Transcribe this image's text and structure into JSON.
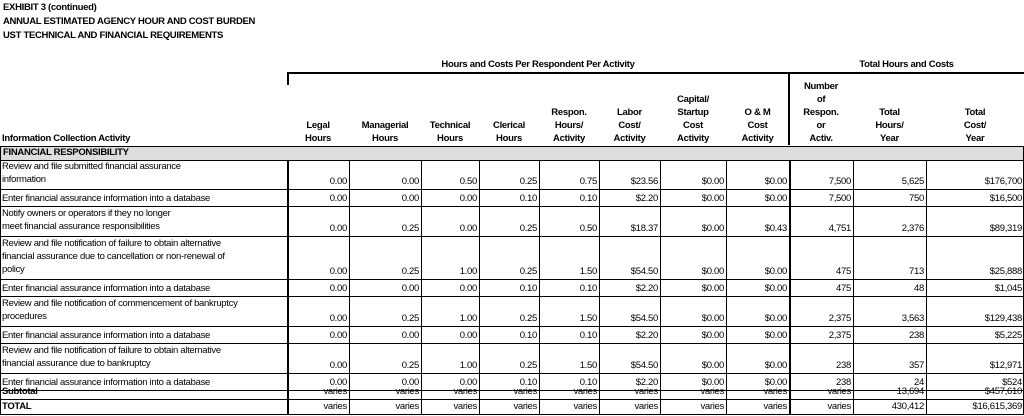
{
  "header": {
    "exhibit": "EXHIBIT 3 (continued)",
    "title1": "ANNUAL ESTIMATED AGENCY HOUR AND COST BURDEN",
    "title2": "UST TECHNICAL AND FINANCIAL REQUIREMENTS"
  },
  "groups": [
    "Hours and Costs Per Respondent Per Activity",
    "Total Hours and Costs"
  ],
  "columns": [
    [
      "Information Collection Activity"
    ],
    [
      "Legal",
      "Hours"
    ],
    [
      "Managerial",
      "Hours"
    ],
    [
      "Technical",
      "Hours"
    ],
    [
      "Clerical",
      "Hours"
    ],
    [
      "Respon.",
      "Hours/",
      "Activity"
    ],
    [
      "Labor",
      "Cost/",
      "Activity"
    ],
    [
      "Capital/",
      "Startup",
      "Cost",
      "Activity"
    ],
    [
      "O & M",
      "Cost",
      "Activity"
    ],
    [
      "Number",
      "of",
      "Respon.",
      "or",
      "Activ."
    ],
    [
      "Total",
      "Hours/",
      "Year"
    ],
    [
      "Total",
      "Cost/",
      "Year"
    ]
  ],
  "section": "FINANCIAL RESPONSIBILITY",
  "rows": [
    {
      "activity": [
        "Review and file submitted financial assurance",
        "information"
      ],
      "values": [
        "0.00",
        "0.00",
        "0.50",
        "0.25",
        "0.75",
        "$23.56",
        "$0.00",
        "$0.00",
        "7,500",
        "5,625",
        "$176,700"
      ]
    },
    {
      "activity": [
        "Enter financial assurance information into a database"
      ],
      "values": [
        "0.00",
        "0.00",
        "0.00",
        "0.10",
        "0.10",
        "$2.20",
        "$0.00",
        "$0.00",
        "7,500",
        "750",
        "$16,500"
      ]
    },
    {
      "activity": [
        "Notify owners or operators if they no longer",
        "meet financial assurance responsibilities"
      ],
      "values": [
        "0.00",
        "0.25",
        "0.00",
        "0.25",
        "0.50",
        "$18.37",
        "$0.00",
        "$0.43",
        "4,751",
        "2,376",
        "$89,319"
      ]
    },
    {
      "activity": [
        "Review and file notification of failure to obtain alternative",
        "financial assurance due to cancellation or non-renewal of",
        "policy"
      ],
      "values": [
        "0.00",
        "0.25",
        "1.00",
        "0.25",
        "1.50",
        "$54.50",
        "$0.00",
        "$0.00",
        "475",
        "713",
        "$25,888"
      ]
    },
    {
      "activity": [
        "Enter financial assurance information into a database"
      ],
      "values": [
        "0.00",
        "0.00",
        "0.00",
        "0.10",
        "0.10",
        "$2.20",
        "$0.00",
        "$0.00",
        "475",
        "48",
        "$1,045"
      ]
    },
    {
      "activity": [
        "Review and file notification of commencement of bankruptcy",
        "procedures"
      ],
      "values": [
        "0.00",
        "0.25",
        "1.00",
        "0.25",
        "1.50",
        "$54.50",
        "$0.00",
        "$0.00",
        "2,375",
        "3,563",
        "$129,438"
      ]
    },
    {
      "activity": [
        "Enter financial assurance information into a database"
      ],
      "values": [
        "0.00",
        "0.00",
        "0.00",
        "0.10",
        "0.10",
        "$2.20",
        "$0.00",
        "$0.00",
        "2,375",
        "238",
        "$5,225"
      ]
    },
    {
      "activity": [
        "Review and file notification of failure to obtain alternative",
        "financial assurance due to bankruptcy"
      ],
      "values": [
        "0.00",
        "0.25",
        "1.00",
        "0.25",
        "1.50",
        "$54.50",
        "$0.00",
        "$0.00",
        "238",
        "357",
        "$12,971"
      ]
    },
    {
      "activity": [
        "Enter financial assurance information into a database"
      ],
      "values": [
        "0.00",
        "0.00",
        "0.00",
        "0.10",
        "0.10",
        "$2.20",
        "$0.00",
        "$0.00",
        "238",
        "24",
        "$524"
      ]
    }
  ],
  "totals": [
    {
      "activity": [
        "Subtotal"
      ],
      "values": [
        "varies",
        "varies",
        "varies",
        "varies",
        "varies",
        "varies",
        "varies",
        "varies",
        "varies",
        "13,694",
        "$457,610"
      ]
    },
    {
      "activity": [
        "TOTAL"
      ],
      "values": [
        "varies",
        "varies",
        "varies",
        "varies",
        "varies",
        "varies",
        "varies",
        "varies",
        "varies",
        "430,412",
        "$16,615,369"
      ]
    }
  ]
}
